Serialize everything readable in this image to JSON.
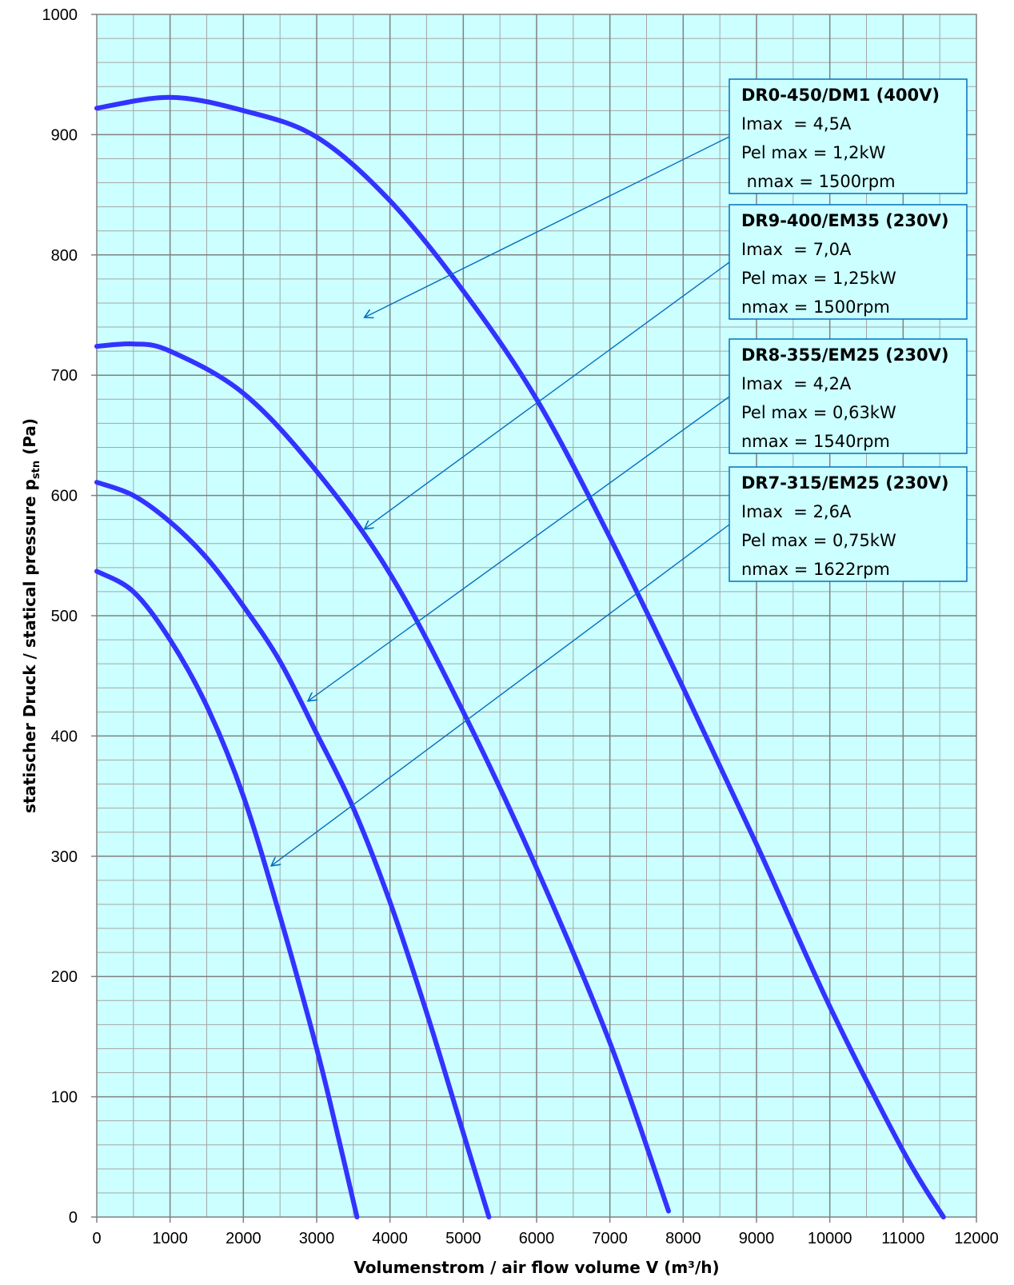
{
  "chart_data": {
    "type": "line",
    "xlabel": "Volumenstrom / air flow volume V (m³/h)",
    "ylabel": "statischer Druck / statical pressure p",
    "ylabel_sub": "stn",
    "ylabel_unit": " (Pa)",
    "xlim": [
      0,
      12000
    ],
    "ylim": [
      0,
      1000
    ],
    "x_ticks": [
      0,
      1000,
      2000,
      3000,
      4000,
      5000,
      6000,
      7000,
      8000,
      9000,
      10000,
      11000,
      12000
    ],
    "y_ticks": [
      0,
      100,
      200,
      300,
      400,
      500,
      600,
      700,
      800,
      900,
      1000
    ],
    "grid": true,
    "colors": {
      "background": "#ccffff",
      "curve": "#3333ff",
      "annotation": "#0070c0",
      "grid": "#808080"
    },
    "series": [
      {
        "name": "DR0-450/DM1 (400V)",
        "x": [
          0,
          1000,
          2000,
          3000,
          4000,
          5000,
          6000,
          7000,
          8000,
          9000,
          10000,
          11000,
          11550
        ],
        "y": [
          922,
          931,
          920,
          898,
          845,
          770,
          680,
          565,
          440,
          310,
          175,
          55,
          0
        ]
      },
      {
        "name": "DR9-400/EM35 (230V)",
        "x": [
          0,
          500,
          1000,
          2000,
          3000,
          4000,
          5000,
          6000,
          7000,
          7800
        ],
        "y": [
          724,
          726,
          720,
          685,
          620,
          535,
          420,
          290,
          145,
          5
        ]
      },
      {
        "name": "DR8-355/EM25 (230V)",
        "x": [
          0,
          500,
          1000,
          1500,
          2000,
          2500,
          3000,
          3500,
          4000,
          4500,
          5000,
          5350
        ],
        "y": [
          611,
          600,
          578,
          548,
          508,
          462,
          402,
          340,
          262,
          170,
          70,
          0
        ]
      },
      {
        "name": "DR7-315/EM25 (230V)",
        "x": [
          0,
          500,
          1000,
          1500,
          2000,
          2500,
          3000,
          3300,
          3550
        ],
        "y": [
          537,
          520,
          480,
          425,
          350,
          250,
          140,
          65,
          0
        ]
      }
    ],
    "annotations": [
      {
        "title": "DR0-450/DM1 (400V)",
        "lines": [
          "Imax  = 4,5A",
          "Pel max = 1,2kW",
          " nmax = 1500rpm"
        ],
        "arrow_to": [
          3650,
          748
        ]
      },
      {
        "title": "DR9-400/EM35 (230V)",
        "lines": [
          "Imax  = 7,0A",
          "Pel max = 1,25kW",
          "nmax = 1500rpm"
        ],
        "arrow_to": [
          3650,
          572
        ]
      },
      {
        "title": "DR8-355/EM25 (230V)",
        "lines": [
          "Imax  = 4,2A",
          "Pel max = 0,63kW",
          "nmax = 1540rpm"
        ],
        "arrow_to": [
          2880,
          429
        ]
      },
      {
        "title": "DR7-315/EM25 (230V)",
        "lines": [
          "Imax  = 2,6A",
          "Pel max = 0,75kW",
          "nmax = 1622rpm"
        ],
        "arrow_to": [
          2380,
          292
        ]
      }
    ]
  }
}
